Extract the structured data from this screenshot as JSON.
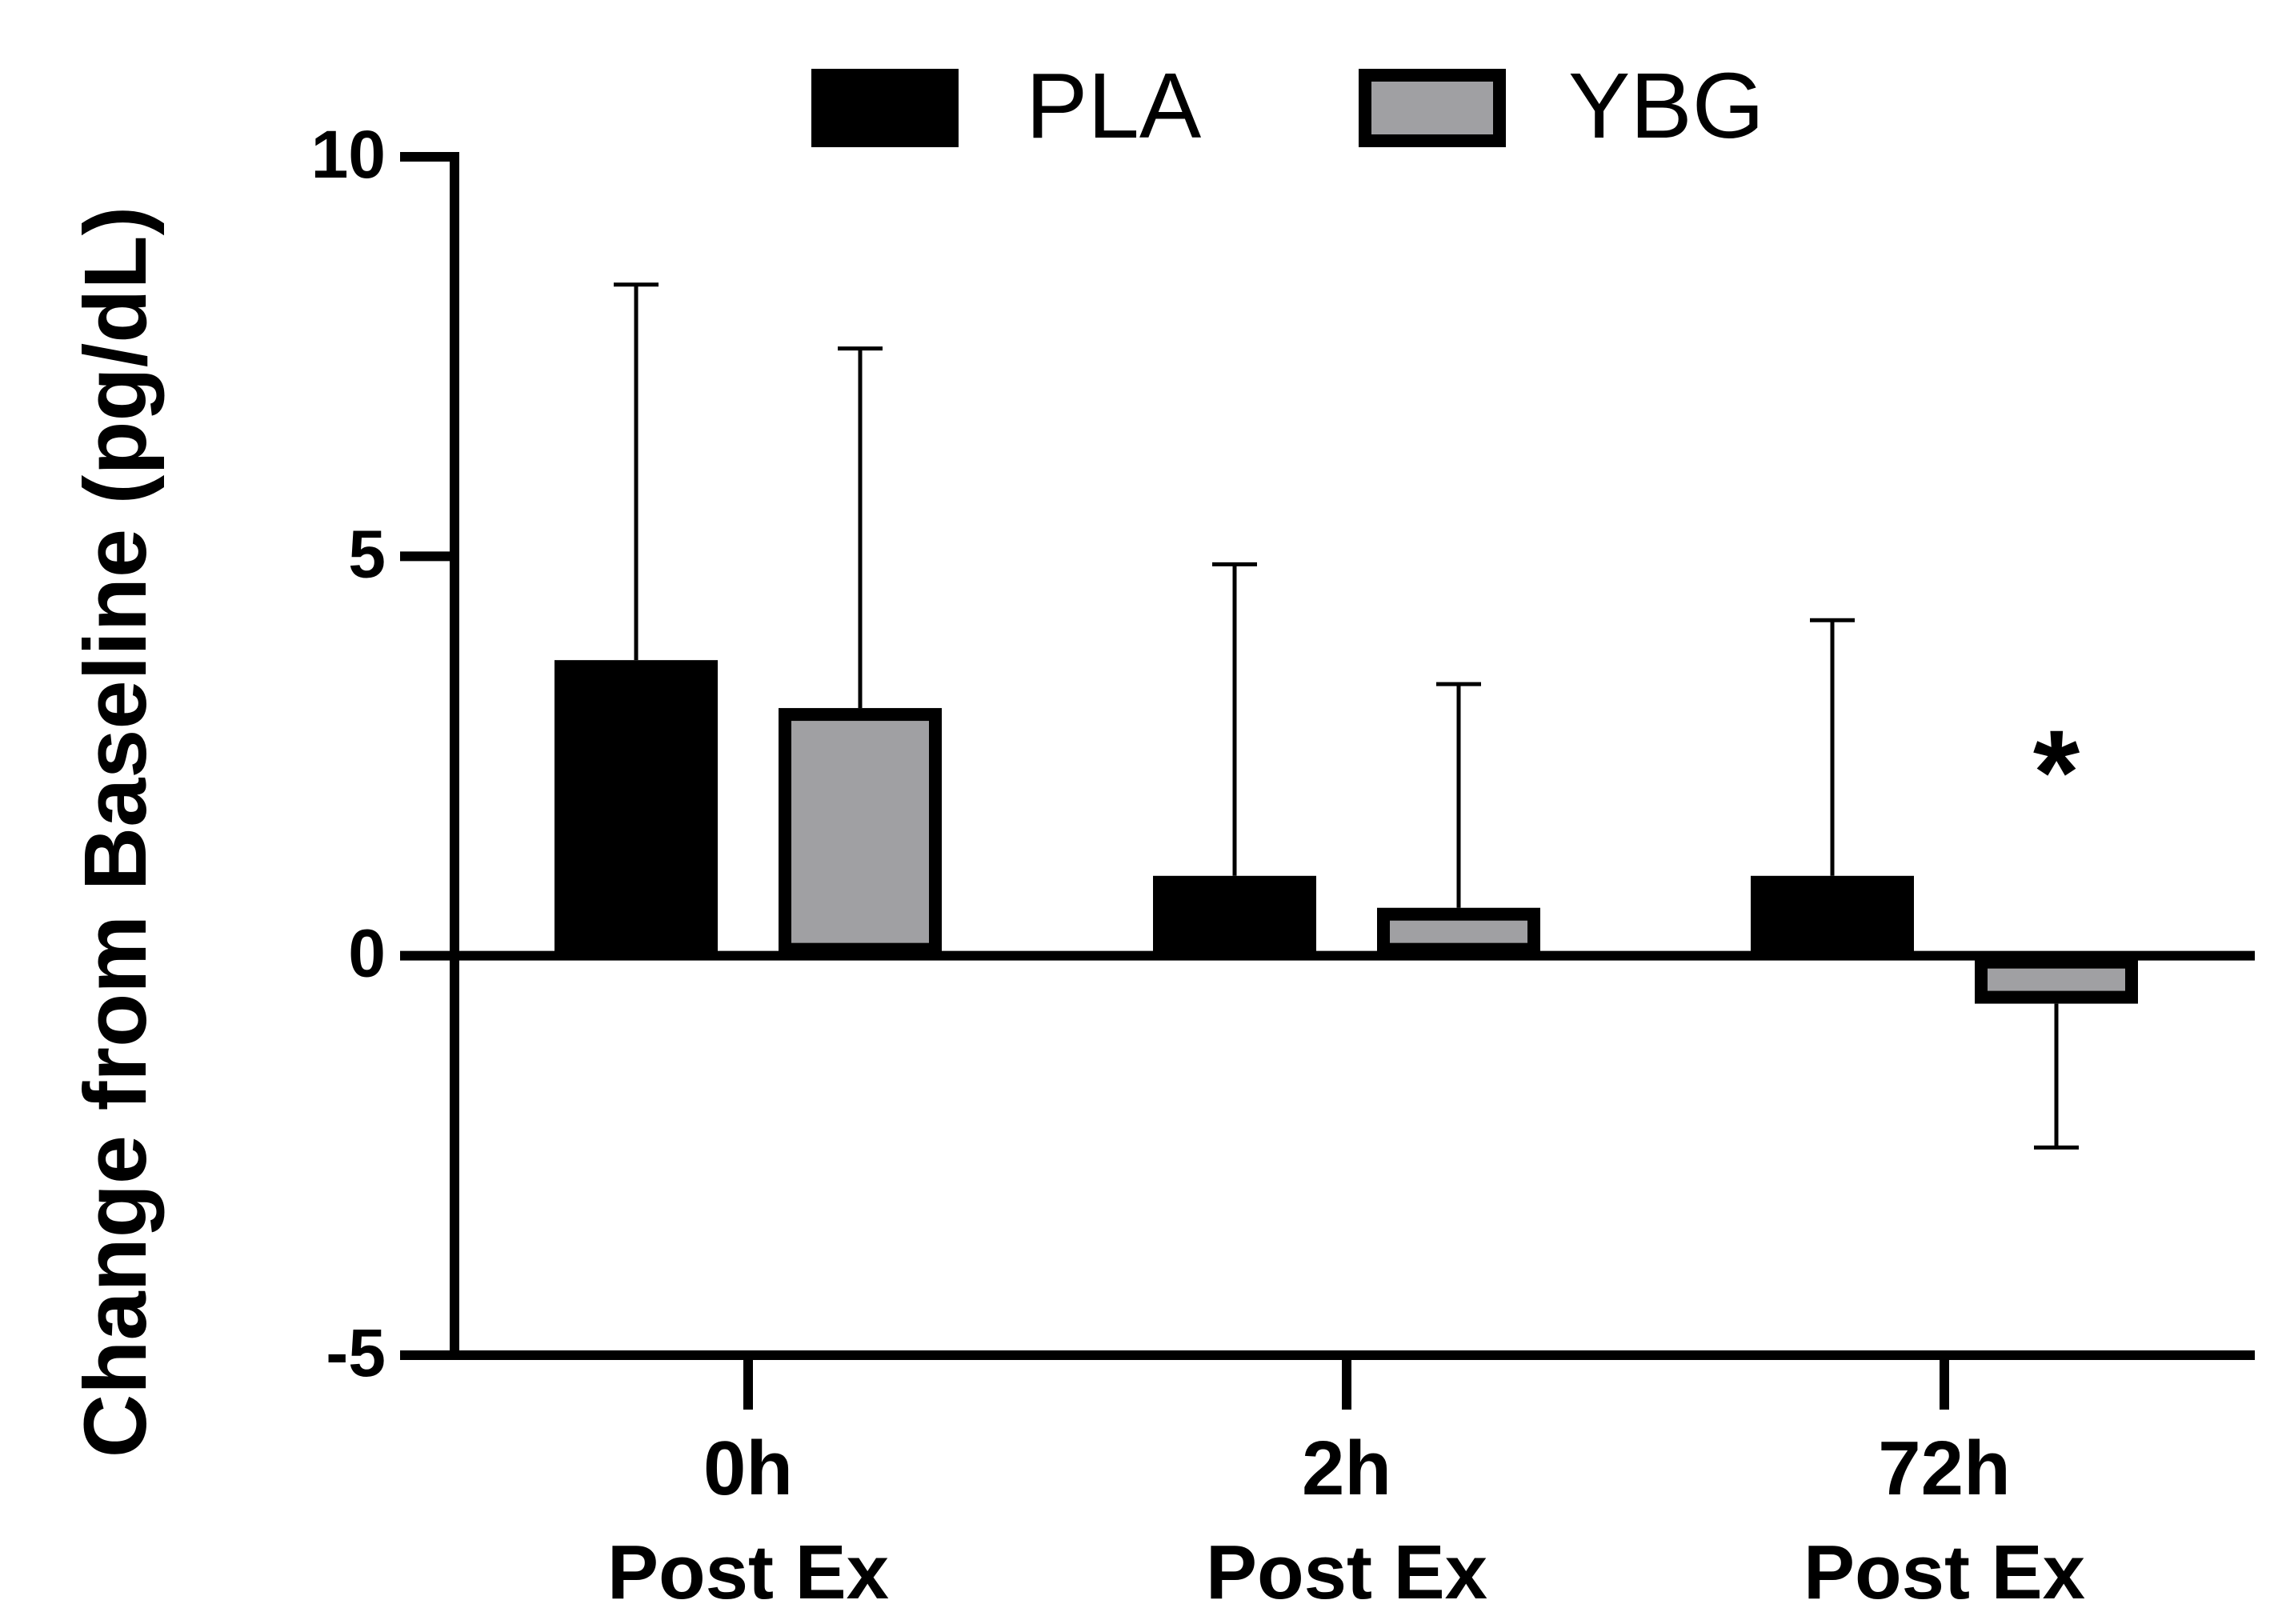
{
  "chart_data": {
    "type": "bar",
    "title": "",
    "xlabel": "",
    "ylabel": "Change from Baseline (pg/dL)",
    "ylim": [
      -5,
      10
    ],
    "yticks": [
      -5,
      0,
      5,
      10
    ],
    "ytick_labels": [
      "-5",
      "0",
      "5",
      "10"
    ],
    "categories": [
      {
        "line1": "0h",
        "line2": "Post Ex"
      },
      {
        "line1": "2h",
        "line2": "Post Ex"
      },
      {
        "line1": "72h",
        "line2": "Post Ex"
      }
    ],
    "series": [
      {
        "name": "PLA",
        "color": "#000000",
        "values": [
          3.7,
          1.0,
          1.0
        ],
        "errors": [
          4.7,
          3.9,
          3.2
        ]
      },
      {
        "name": "YBG",
        "color": "#a0a0a3",
        "values": [
          3.1,
          0.6,
          -0.6
        ],
        "errors": [
          4.5,
          2.8,
          1.8
        ]
      }
    ],
    "legend_position": "top-center",
    "annotations": [
      {
        "text": "*",
        "category_index": 2,
        "series_index": 1,
        "y": 2.4
      }
    ]
  }
}
